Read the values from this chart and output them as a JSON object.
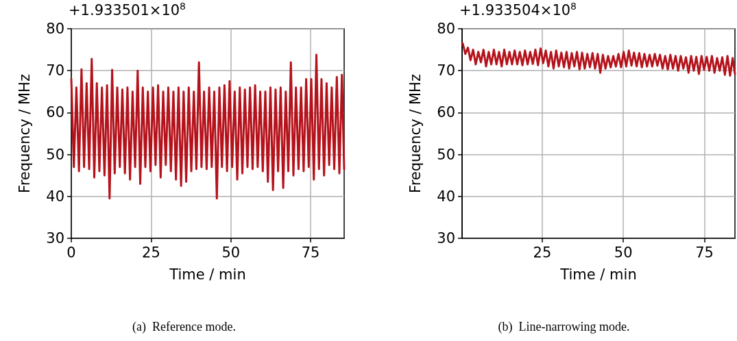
{
  "chart_data": [
    {
      "type": "line",
      "xlabel": "Time / min",
      "ylabel": "Frequency / MHz",
      "annotations": [
        "+1.933501×10$^{8}$",
        "(a)  Reference mode."
      ],
      "xlim": [
        0,
        85.5
      ],
      "xticks": [
        0,
        25,
        50,
        75
      ],
      "ylim": [
        30,
        80
      ],
      "yticks": [
        30,
        40,
        50,
        60,
        70,
        80
      ],
      "grid": true,
      "marker": "none",
      "line_style": "solid",
      "series": [
        {
          "color": "#b5121b",
          "x": [
            0,
            0.8,
            1.6,
            2.4,
            3.2,
            4,
            4.8,
            5.6,
            6.4,
            7.2,
            8,
            8.8,
            9.6,
            10.4,
            11.2,
            12,
            12.8,
            13.6,
            14.4,
            15.2,
            16,
            16.8,
            17.6,
            18.4,
            19.2,
            20,
            20.8,
            21.6,
            22.4,
            23.2,
            24,
            24.8,
            25.6,
            26.4,
            27.2,
            28,
            28.8,
            29.6,
            30.4,
            31.2,
            32,
            32.8,
            33.6,
            34.4,
            35.2,
            36,
            36.8,
            37.6,
            38.4,
            39.2,
            40,
            40.8,
            41.6,
            42.4,
            43.2,
            44,
            44.8,
            45.6,
            46.4,
            47.2,
            48,
            48.8,
            49.6,
            50.4,
            51.2,
            52,
            52.8,
            53.6,
            54.4,
            55.2,
            56,
            56.8,
            57.6,
            58.4,
            59.2,
            60,
            60.8,
            61.6,
            62.4,
            63.2,
            64,
            64.8,
            65.6,
            66.4,
            67.2,
            68,
            68.8,
            69.6,
            70.4,
            71.2,
            72,
            72.8,
            73.6,
            74.4,
            75.2,
            76,
            76.8,
            77.6,
            78.4,
            79.2,
            80,
            80.8,
            81.6,
            82.4,
            83.2,
            84,
            84.8,
            85.5
          ],
          "values": [
            68,
            47,
            66,
            46,
            70.3,
            47,
            67,
            46.5,
            72.8,
            44.5,
            67,
            46,
            66,
            45,
            66.5,
            39.5,
            70.2,
            45.5,
            66,
            47,
            65.5,
            45.5,
            66,
            44,
            65,
            47,
            70,
            43,
            66,
            47,
            65,
            46,
            66,
            47.5,
            66.5,
            44.5,
            65,
            47.5,
            66,
            46,
            65,
            44,
            66,
            42.5,
            65,
            43.5,
            66,
            46,
            65,
            46.5,
            72,
            47,
            65,
            46.5,
            66,
            47,
            65,
            39.5,
            66,
            47,
            66.5,
            46,
            67.5,
            47,
            65,
            44,
            66,
            45.5,
            65.5,
            47,
            66,
            46.5,
            66.5,
            47,
            65,
            46,
            65,
            43.5,
            66,
            41.5,
            65.5,
            46,
            66,
            42,
            65,
            46,
            72,
            45,
            66,
            46.5,
            66,
            46,
            68,
            47,
            68,
            44,
            73.8,
            46.5,
            68,
            45,
            67,
            47.5,
            66,
            46.5,
            68.5,
            45.5,
            69,
            46.5
          ]
        }
      ]
    },
    {
      "type": "line",
      "xlabel": "Time / min",
      "ylabel": "Frequency / MHz",
      "annotations": [
        "+1.933504×10$^{8}$",
        "(b)  Line-narrowing mode."
      ],
      "xlim": [
        0.3,
        84.4
      ],
      "xticks": [
        25,
        50,
        75
      ],
      "ylim": [
        30,
        80
      ],
      "yticks": [
        30,
        40,
        50,
        60,
        70,
        80
      ],
      "grid": true,
      "marker": "none",
      "line_style": "solid",
      "series": [
        {
          "color": "#b5121b",
          "x": [
            0.5,
            1.3,
            2.1,
            2.9,
            3.7,
            4.5,
            5.3,
            6.1,
            6.9,
            7.7,
            8.5,
            9.3,
            10.1,
            10.9,
            11.7,
            12.5,
            13.3,
            14.1,
            14.9,
            15.7,
            16.5,
            17.3,
            18.1,
            18.9,
            19.7,
            20.5,
            21.3,
            22.1,
            22.9,
            23.7,
            24.5,
            25.3,
            26.1,
            26.9,
            27.7,
            28.5,
            29.3,
            30.1,
            30.9,
            31.7,
            32.5,
            33.3,
            34.1,
            34.9,
            35.7,
            36.5,
            37.3,
            38.1,
            38.9,
            39.7,
            40.5,
            41.3,
            42.1,
            42.9,
            43.7,
            44.5,
            45.3,
            46.1,
            46.9,
            47.7,
            48.5,
            49.3,
            50.1,
            50.9,
            51.7,
            52.5,
            53.3,
            54.1,
            54.9,
            55.7,
            56.5,
            57.3,
            58.1,
            58.9,
            59.7,
            60.5,
            61.3,
            62.1,
            62.9,
            63.7,
            64.5,
            65.3,
            66.1,
            66.9,
            67.7,
            68.5,
            69.3,
            70.1,
            70.9,
            71.7,
            72.5,
            73.3,
            74.1,
            74.9,
            75.7,
            76.5,
            77.3,
            78.1,
            78.9,
            79.7,
            80.5,
            81.3,
            82.1,
            82.9,
            83.7,
            84.4
          ],
          "values": [
            76.5,
            74,
            75.5,
            72.5,
            75,
            71.5,
            74.5,
            72,
            75,
            71,
            74.5,
            71.5,
            75,
            71.5,
            74.5,
            71,
            75,
            71.5,
            74.5,
            71.5,
            74.8,
            71.5,
            74.5,
            71.3,
            74.8,
            71.5,
            74.5,
            71.6,
            75,
            71.3,
            75.3,
            71.8,
            74.8,
            71,
            74.5,
            70.5,
            74.8,
            71,
            74.3,
            70.8,
            74.5,
            70.5,
            74.2,
            71,
            74.5,
            70.3,
            74.3,
            70.5,
            74,
            70.8,
            74.2,
            70.5,
            74,
            69.5,
            73.8,
            70.5,
            73.5,
            70.8,
            73.5,
            71,
            74,
            70.8,
            74.5,
            71,
            74.8,
            71.2,
            74.3,
            71,
            74.2,
            70.8,
            74,
            71,
            73.8,
            71,
            74,
            71.2,
            73.8,
            70.5,
            73.5,
            70.3,
            73.8,
            70.5,
            73.5,
            70,
            73.5,
            70.5,
            73.2,
            69.5,
            73.5,
            70,
            73.3,
            69.2,
            73.5,
            70.2,
            73.3,
            70,
            73.5,
            69.5,
            73,
            70,
            73.2,
            69,
            73.5,
            68.8,
            73,
            69.2
          ]
        }
      ]
    }
  ]
}
